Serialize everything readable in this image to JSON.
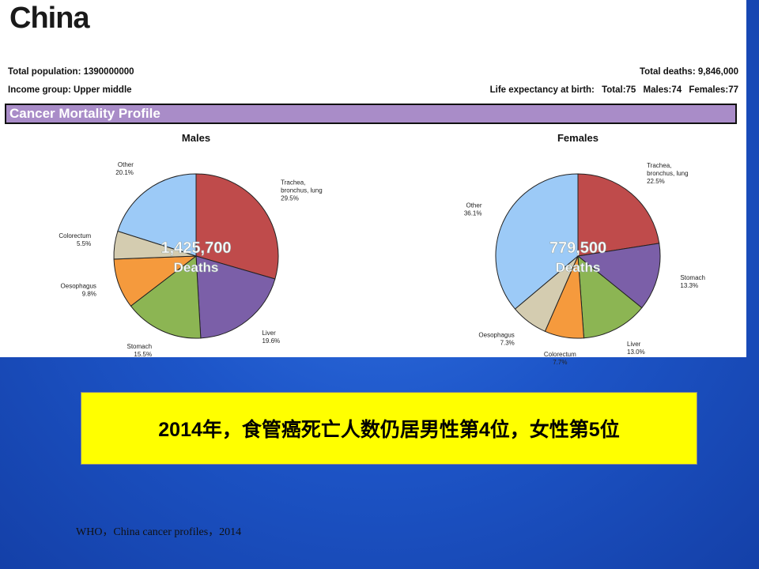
{
  "header": {
    "country": "China",
    "total_population": "Total population: 1390000000",
    "income_group": "Income group: Upper middle",
    "total_deaths": "Total deaths: 9,846,000",
    "life_expectancy": {
      "label": "Life expectancy at birth:",
      "total": "Total:75",
      "males": "Males:74",
      "females": "Females:77"
    },
    "banner": "Cancer Mortality Profile"
  },
  "chart_data": [
    {
      "type": "pie",
      "title": "Males",
      "center_value": "1,425,700",
      "center_label": "Deaths",
      "slices": [
        {
          "name": "Trachea, bronchus, lung",
          "value": 29.5,
          "label": "29.5%",
          "color": "#bf4b4b"
        },
        {
          "name": "Liver",
          "value": 19.6,
          "label": "19.6%",
          "color": "#7b5fa8"
        },
        {
          "name": "Stomach",
          "value": 15.5,
          "label": "15.5%",
          "color": "#8cb553"
        },
        {
          "name": "Oesophagus",
          "value": 9.8,
          "label": "9.8%",
          "color": "#f59a3d"
        },
        {
          "name": "Colorectum",
          "value": 5.5,
          "label": "5.5%",
          "color": "#d4ccb0"
        },
        {
          "name": "Other",
          "value": 20.1,
          "label": "20.1%",
          "color": "#9ccaf7"
        }
      ]
    },
    {
      "type": "pie",
      "title": "Females",
      "center_value": "779,500",
      "center_label": "Deaths",
      "slices": [
        {
          "name": "Trachea, bronchus, lung",
          "value": 22.5,
          "label": "22.5%",
          "color": "#bf4b4b"
        },
        {
          "name": "Stomach",
          "value": 13.3,
          "label": "13.3%",
          "color": "#7b5fa8"
        },
        {
          "name": "Liver",
          "value": 13.0,
          "label": "13.0%",
          "color": "#8cb553"
        },
        {
          "name": "Colorectum",
          "value": 7.7,
          "label": "7.7%",
          "color": "#f59a3d"
        },
        {
          "name": "Oesophagus",
          "value": 7.3,
          "label": "7.3%",
          "color": "#d4ccb0"
        },
        {
          "name": "Other",
          "value": 36.1,
          "label": "36.1%",
          "color": "#9ccaf7"
        }
      ]
    }
  ],
  "callout": "2014年，食管癌死亡人数仍居男性第4位，女性第5位",
  "source": "WHO，China cancer profiles，2014"
}
